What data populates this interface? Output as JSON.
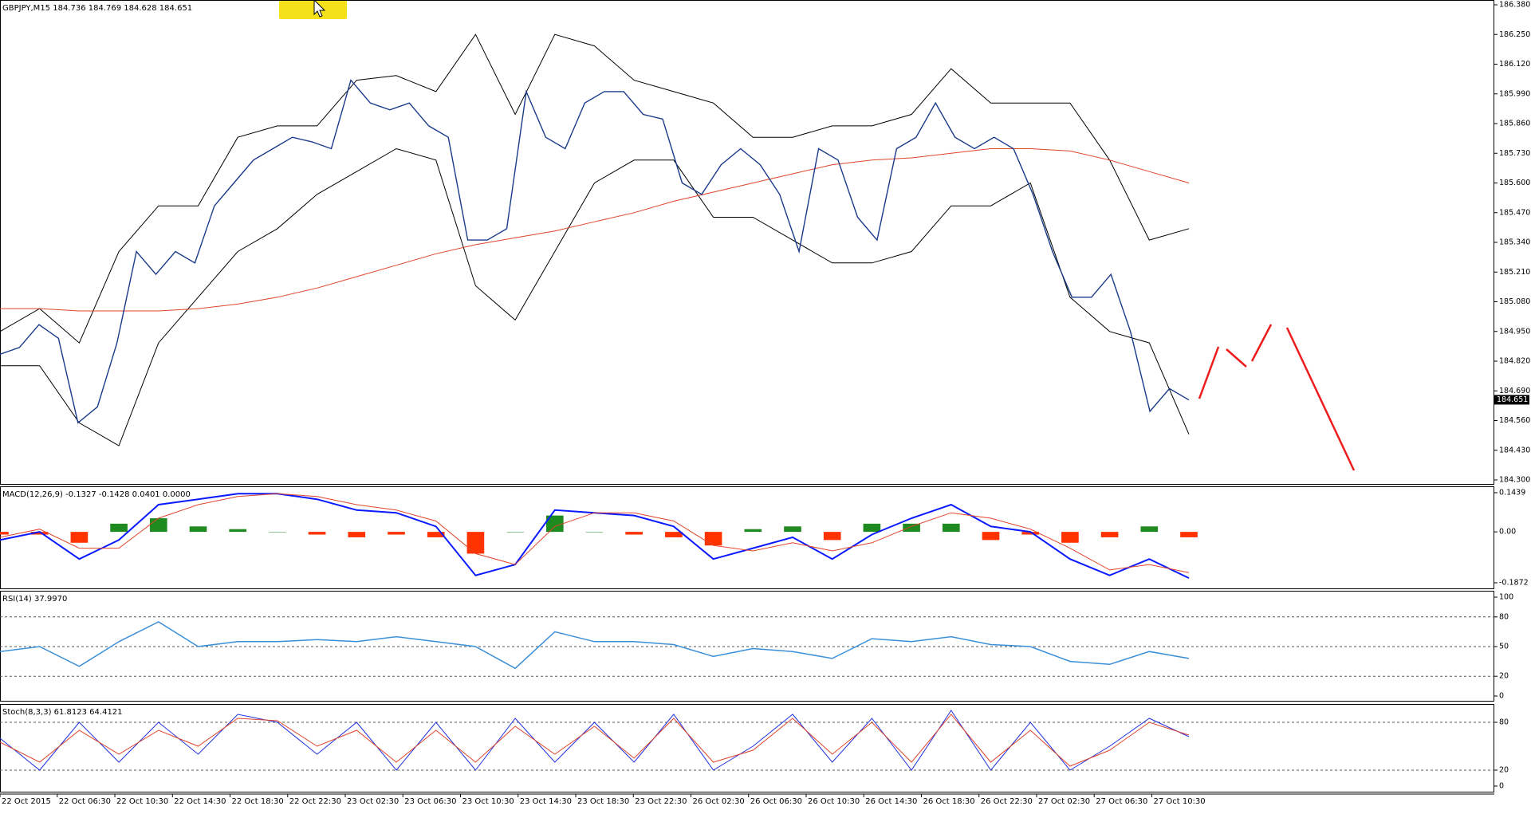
{
  "time_labels": [
    "22 Oct 2015",
    "22 Oct 06:30",
    "22 Oct 10:30",
    "22 Oct 14:30",
    "22 Oct 18:30",
    "22 Oct 22:30",
    "23 Oct 02:30",
    "23 Oct 06:30",
    "23 Oct 10:30",
    "23 Oct 14:30",
    "23 Oct 18:30",
    "23 Oct 22:30",
    "26 Oct 02:30",
    "26 Oct 06:30",
    "26 Oct 10:30",
    "26 Oct 14:30",
    "26 Oct 18:30",
    "26 Oct 22:30",
    "27 Oct 02:30",
    "27 Oct 06:30",
    "27 Oct 10:30"
  ],
  "chart_data": [
    {
      "type": "line",
      "title": "GBPJPY,M15  184.736 184.769 184.628 184.651",
      "current_price": 184.651,
      "ylim": [
        184.3,
        186.38
      ],
      "yticks": [
        {
          "value": 186.38,
          "label": "186.380"
        },
        {
          "value": 186.25,
          "label": "186.250"
        },
        {
          "value": 186.12,
          "label": "186.120"
        },
        {
          "value": 185.99,
          "label": "185.990"
        },
        {
          "value": 185.86,
          "label": "185.860"
        },
        {
          "value": 185.73,
          "label": "185.730"
        },
        {
          "value": 185.6,
          "label": "185.600"
        },
        {
          "value": 185.47,
          "label": "185.470"
        },
        {
          "value": 185.34,
          "label": "185.340"
        },
        {
          "value": 185.21,
          "label": "185.210"
        },
        {
          "value": 185.08,
          "label": "185.080"
        },
        {
          "value": 184.95,
          "label": "184.950"
        },
        {
          "value": 184.82,
          "label": "184.820"
        },
        {
          "value": 184.69,
          "label": "184.690"
        },
        {
          "value": 184.56,
          "label": "184.560"
        },
        {
          "value": 184.43,
          "label": "184.430"
        },
        {
          "value": 184.3,
          "label": "184.300"
        }
      ],
      "series": [
        {
          "kind": "line",
          "color": "#000000",
          "width": 1,
          "values": [
            184.95,
            185.05,
            184.9,
            185.3,
            185.5,
            185.5,
            185.8,
            185.85,
            185.85,
            186.05,
            186.07,
            186.0,
            186.25,
            185.9,
            186.25,
            186.2,
            186.05,
            186.0,
            185.95,
            185.8,
            185.8,
            185.85,
            185.85,
            185.9,
            186.1,
            185.95,
            185.95,
            185.95,
            185.7,
            185.35,
            185.4
          ]
        },
        {
          "kind": "line",
          "color": "#000000",
          "width": 1,
          "values": [
            184.8,
            184.8,
            184.55,
            184.45,
            184.9,
            185.1,
            185.3,
            185.4,
            185.55,
            185.65,
            185.75,
            185.7,
            185.15,
            185.0,
            185.3,
            185.6,
            185.7,
            185.7,
            185.45,
            185.45,
            185.35,
            185.25,
            185.25,
            185.3,
            185.5,
            185.5,
            185.6,
            185.1,
            184.95,
            184.9,
            184.5
          ]
        },
        {
          "kind": "line",
          "color": "#e0442a",
          "width": 1,
          "values": [
            185.05,
            185.05,
            185.04,
            185.04,
            185.04,
            185.05,
            185.07,
            185.1,
            185.14,
            185.19,
            185.24,
            185.29,
            185.33,
            185.36,
            185.39,
            185.43,
            185.47,
            185.52,
            185.56,
            185.6,
            185.64,
            185.68,
            185.7,
            185.71,
            185.73,
            185.75,
            185.75,
            185.74,
            185.7,
            185.65,
            185.6
          ]
        },
        {
          "kind": "line",
          "color": "#1a3a8a",
          "width": 1.4,
          "values": [
            184.85,
            184.88,
            184.98,
            184.92,
            184.55,
            184.62,
            184.9,
            185.3,
            185.2,
            185.3,
            185.25,
            185.5,
            185.6,
            185.7,
            185.75,
            185.8,
            185.78,
            185.75,
            186.05,
            185.95,
            185.92,
            185.95,
            185.85,
            185.8,
            185.35,
            185.35,
            185.4,
            186.0,
            185.8,
            185.75,
            185.95,
            186.0,
            186.0,
            185.9,
            185.88,
            185.6,
            185.55,
            185.68,
            185.75,
            185.68,
            185.55,
            185.3,
            185.75,
            185.7,
            185.45,
            185.35,
            185.75,
            185.8,
            185.95,
            185.8,
            185.75,
            185.8,
            185.75,
            185.55,
            185.3,
            185.1,
            185.1,
            185.2,
            184.95,
            184.6,
            184.7,
            184.65
          ]
        }
      ]
    },
    {
      "type": "macd",
      "title": "MACD(12,26,9) -0.1327 -0.1428 0.0401 0.0000",
      "ylim": [
        -0.1872,
        0.1439
      ],
      "yticks": [
        {
          "value": 0.1439,
          "label": "0.1439"
        },
        {
          "value": 0,
          "label": "0.00"
        },
        {
          "value": -0.1872,
          "label": "-0.1872"
        }
      ],
      "up_color": "#1f8a1f",
      "down_color": "#ff3300",
      "series": [
        {
          "kind": "histogram",
          "values": [
            -0.01,
            -0.01,
            -0.04,
            0.03,
            0.05,
            0.02,
            0.01,
            0.0,
            -0.01,
            -0.02,
            -0.01,
            -0.02,
            -0.08,
            0.0,
            0.06,
            0.0,
            -0.01,
            -0.02,
            -0.05,
            0.01,
            0.02,
            -0.03,
            0.03,
            0.03,
            0.03,
            -0.03,
            -0.01,
            -0.04,
            -0.02,
            0.02,
            -0.02
          ]
        },
        {
          "kind": "line",
          "color": "#0a1aff",
          "width": 2,
          "values": [
            -0.03,
            0.0,
            -0.1,
            -0.03,
            0.1,
            0.12,
            0.14,
            0.14,
            0.12,
            0.08,
            0.07,
            0.02,
            -0.16,
            -0.12,
            0.08,
            0.07,
            0.06,
            0.02,
            -0.1,
            -0.06,
            -0.02,
            -0.1,
            -0.01,
            0.05,
            0.1,
            0.02,
            0.0,
            -0.1,
            -0.16,
            -0.1,
            -0.17
          ]
        },
        {
          "kind": "line",
          "color": "#e0442a",
          "width": 1,
          "values": [
            -0.02,
            0.01,
            -0.06,
            -0.06,
            0.05,
            0.1,
            0.13,
            0.14,
            0.13,
            0.1,
            0.08,
            0.04,
            -0.08,
            -0.12,
            0.02,
            0.07,
            0.07,
            0.04,
            -0.05,
            -0.07,
            -0.04,
            -0.07,
            -0.04,
            0.02,
            0.07,
            0.05,
            0.01,
            -0.06,
            -0.14,
            -0.12,
            -0.15
          ]
        }
      ]
    },
    {
      "type": "line",
      "title": "RSI(14) 37.9970",
      "ylim": [
        0,
        100
      ],
      "yticks": [
        100,
        80,
        50,
        20,
        0
      ],
      "grid": "dashed",
      "series": [
        {
          "kind": "line",
          "color": "#3a8fd9",
          "width": 1.5,
          "values": [
            45,
            50,
            30,
            55,
            75,
            50,
            55,
            55,
            57,
            55,
            60,
            55,
            50,
            28,
            65,
            55,
            55,
            52,
            40,
            48,
            45,
            38,
            58,
            55,
            60,
            52,
            50,
            35,
            32,
            45,
            38
          ]
        }
      ]
    },
    {
      "type": "line",
      "title": "Stoch(8,3,3) 61.8123 64.4121",
      "ylim": [
        0,
        100
      ],
      "yticks": [
        80,
        20,
        0
      ],
      "grid": "dashed",
      "series": [
        {
          "kind": "line",
          "color": "#2030e0",
          "width": 1,
          "values": [
            60,
            20,
            80,
            30,
            80,
            40,
            90,
            80,
            40,
            80,
            20,
            80,
            20,
            85,
            30,
            80,
            30,
            90,
            20,
            50,
            90,
            30,
            85,
            20,
            95,
            20,
            80,
            20,
            50,
            85,
            62
          ]
        },
        {
          "kind": "line",
          "color": "#e0442a",
          "width": 1,
          "values": [
            55,
            30,
            70,
            40,
            70,
            50,
            85,
            82,
            50,
            70,
            30,
            70,
            30,
            75,
            40,
            75,
            35,
            85,
            30,
            45,
            85,
            40,
            80,
            30,
            90,
            30,
            70,
            25,
            45,
            80,
            64
          ]
        }
      ]
    }
  ]
}
